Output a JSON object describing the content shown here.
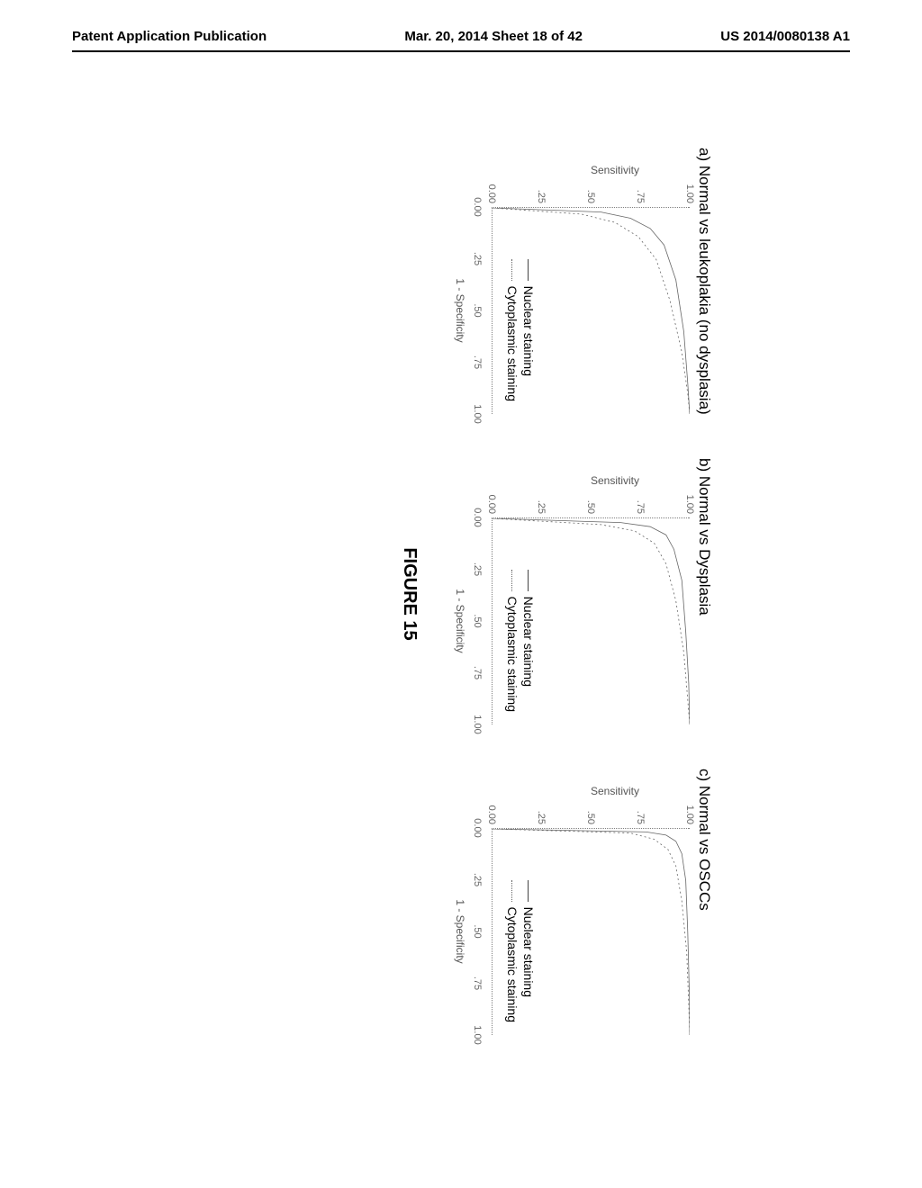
{
  "header": {
    "left": "Patent Application Publication",
    "center": "Mar. 20, 2014  Sheet 18 of 42",
    "right": "US 2014/0080138 A1"
  },
  "figure_caption": "FIGURE 15",
  "chart_common": {
    "type": "line",
    "xlabel": "1 - Specificity",
    "ylabel": "Sensitivity",
    "xlim": [
      0,
      1
    ],
    "ylim": [
      0,
      1
    ],
    "xticks": [
      "0.00",
      ".25",
      ".50",
      ".75",
      "1.00"
    ],
    "yticks": [
      "0.00",
      ".25",
      ".50",
      ".75",
      "1.00"
    ],
    "line_color": "#666666",
    "grid_color": "#808080",
    "background_color": "#ffffff",
    "label_fontsize": 12,
    "tick_fontsize": 11,
    "line_width": 0.8
  },
  "legend": {
    "items": [
      {
        "label": "Nuclear staining",
        "style": "solid"
      },
      {
        "label": "Cytoplasmic staining",
        "style": "dotted"
      }
    ]
  },
  "panels": [
    {
      "id": "a",
      "title": "a) Normal vs leukoplakia (no dysplasia)",
      "nuclear_points": [
        [
          0,
          0
        ],
        [
          0.02,
          0.55
        ],
        [
          0.05,
          0.7
        ],
        [
          0.1,
          0.8
        ],
        [
          0.18,
          0.87
        ],
        [
          0.35,
          0.93
        ],
        [
          0.6,
          0.97
        ],
        [
          0.85,
          0.99
        ],
        [
          1.0,
          1.0
        ]
      ],
      "cyto_points": [
        [
          0,
          0
        ],
        [
          0.03,
          0.45
        ],
        [
          0.07,
          0.62
        ],
        [
          0.14,
          0.74
        ],
        [
          0.25,
          0.83
        ],
        [
          0.45,
          0.9
        ],
        [
          0.7,
          0.96
        ],
        [
          0.9,
          0.99
        ],
        [
          1.0,
          1.0
        ]
      ]
    },
    {
      "id": "b",
      "title": "b) Normal vs Dysplasia",
      "nuclear_points": [
        [
          0,
          0
        ],
        [
          0.02,
          0.65
        ],
        [
          0.04,
          0.8
        ],
        [
          0.08,
          0.88
        ],
        [
          0.15,
          0.92
        ],
        [
          0.3,
          0.96
        ],
        [
          0.55,
          0.98
        ],
        [
          0.8,
          0.995
        ],
        [
          1.0,
          1.0
        ]
      ],
      "cyto_points": [
        [
          0,
          0
        ],
        [
          0.03,
          0.55
        ],
        [
          0.06,
          0.72
        ],
        [
          0.12,
          0.82
        ],
        [
          0.22,
          0.88
        ],
        [
          0.4,
          0.93
        ],
        [
          0.65,
          0.97
        ],
        [
          0.88,
          0.99
        ],
        [
          1.0,
          1.0
        ]
      ]
    },
    {
      "id": "c",
      "title": "c) Normal vs OSCCs",
      "nuclear_points": [
        [
          0,
          0
        ],
        [
          0.015,
          0.78
        ],
        [
          0.03,
          0.88
        ],
        [
          0.06,
          0.93
        ],
        [
          0.12,
          0.96
        ],
        [
          0.25,
          0.98
        ],
        [
          0.5,
          0.99
        ],
        [
          0.8,
          0.998
        ],
        [
          1.0,
          1.0
        ]
      ],
      "cyto_points": [
        [
          0,
          0
        ],
        [
          0.02,
          0.7
        ],
        [
          0.05,
          0.82
        ],
        [
          0.1,
          0.89
        ],
        [
          0.18,
          0.93
        ],
        [
          0.35,
          0.96
        ],
        [
          0.6,
          0.985
        ],
        [
          0.85,
          0.995
        ],
        [
          1.0,
          1.0
        ]
      ]
    }
  ]
}
